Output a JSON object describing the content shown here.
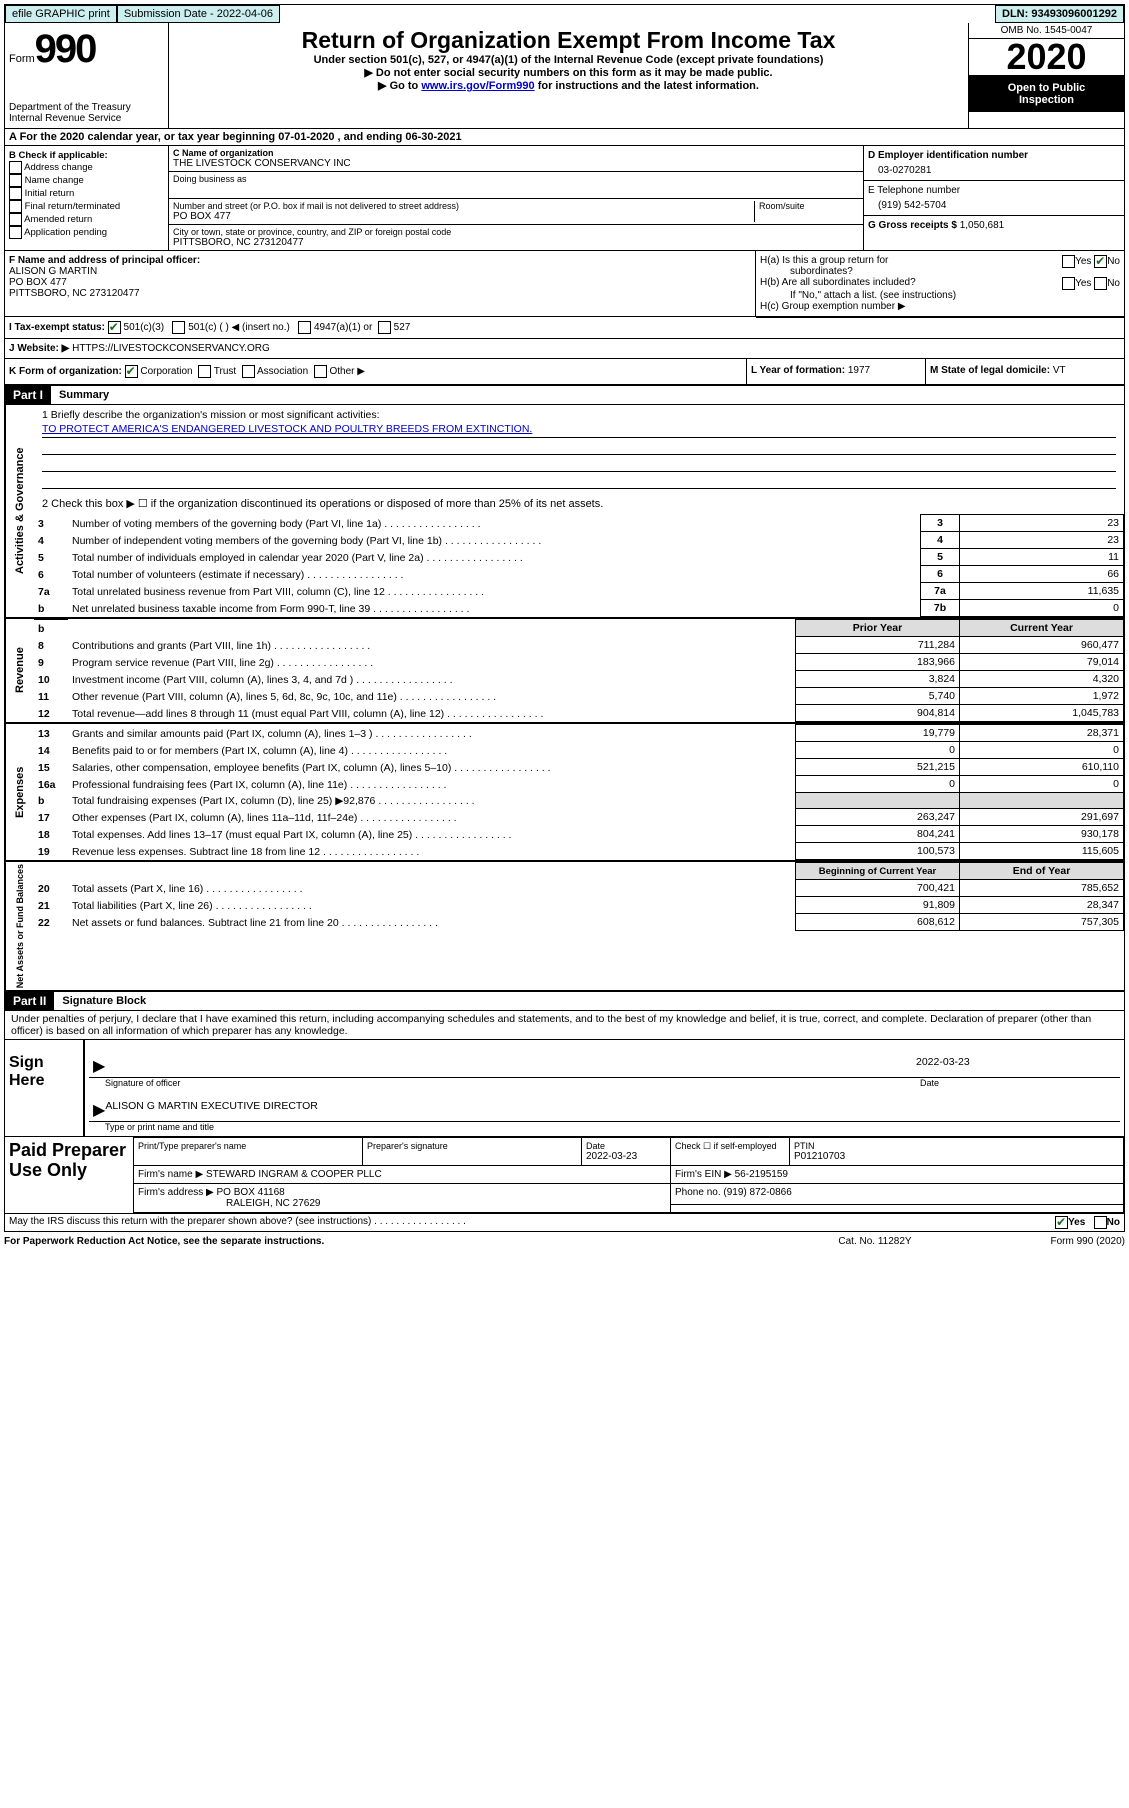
{
  "topbar": {
    "efile": "efile GRAPHIC print",
    "submission": "Submission Date - 2022-04-06",
    "dln": "DLN: 93493096001292"
  },
  "header": {
    "form_word": "Form",
    "form_number": "990",
    "dept1": "Department of the Treasury",
    "dept2": "Internal Revenue Service",
    "title": "Return of Organization Exempt From Income Tax",
    "sub": "Under section 501(c), 527, or 4947(a)(1) of the Internal Revenue Code (except private foundations)",
    "note1": "▶ Do not enter social security numbers on this form as it may be made public.",
    "note2_pre": "▶ Go to ",
    "note2_link": "www.irs.gov/Form990",
    "note2_post": " for instructions and the latest information.",
    "omb": "OMB No. 1545-0047",
    "year": "2020",
    "inspect1": "Open to Public",
    "inspect2": "Inspection"
  },
  "section_a": "A   For the 2020 calendar year, or tax year beginning 07-01-2020    , and ending 06-30-2021",
  "block_b": {
    "title": "B Check if applicable:",
    "items": [
      "Address change",
      "Name change",
      "Initial return",
      "Final return/terminated",
      "Amended return",
      "Application pending"
    ]
  },
  "block_c": {
    "name_label": "C Name of organization",
    "name": "THE LIVESTOCK CONSERVANCY INC",
    "dba_label": "Doing business as",
    "addr_label": "Number and street (or P.O. box if mail is not delivered to street address)",
    "room_label": "Room/suite",
    "addr": "PO BOX 477",
    "city_label": "City or town, state or province, country, and ZIP or foreign postal code",
    "city": "PITTSBORO, NC  273120477"
  },
  "block_d": {
    "d_label": "D Employer identification number",
    "d_value": "03-0270281",
    "e_label": "E Telephone number",
    "e_value": "(919) 542-5704",
    "g_label": "G Gross receipts $",
    "g_value": "1,050,681"
  },
  "block_f": {
    "label": "F  Name and address of principal officer:",
    "line1": "ALISON G MARTIN",
    "line2": "PO BOX 477",
    "line3": "PITTSBORO, NC  273120477"
  },
  "block_h": {
    "ha_label": "H(a)  Is this a group return for",
    "ha_label2": "subordinates?",
    "hb_label": "H(b)  Are all subordinates included?",
    "h_note": "If \"No,\" attach a list. (see instructions)",
    "hc_label": "H(c)  Group exemption number ▶"
  },
  "row_i": {
    "label": "I   Tax-exempt status:",
    "opt1": "501(c)(3)",
    "opt2": "501(c) (  ) ◀ (insert no.)",
    "opt3": "4947(a)(1) or",
    "opt4": "527"
  },
  "row_j": {
    "label": "J   Website: ▶",
    "value": " HTTPS://LIVESTOCKCONSERVANCY.ORG"
  },
  "row_k": {
    "k_label": "K Form of organization:",
    "k_opts": [
      "Corporation",
      "Trust",
      "Association",
      "Other ▶"
    ],
    "l_label": "L Year of formation:",
    "l_value": "1977",
    "m_label": "M State of legal domicile:",
    "m_value": "VT"
  },
  "part1": {
    "header": "Part I",
    "title": "Summary",
    "q1_label": "1   Briefly describe the organization's mission or most significant activities:",
    "q1_text": "TO PROTECT AMERICA'S ENDANGERED LIVESTOCK AND POULTRY BREEDS FROM EXTINCTION.",
    "q2_label": "2   Check this box ▶ ☐  if the organization discontinued its operations or disposed of more than 25% of its net assets.",
    "vert_activities": "Activities & Governance",
    "vert_revenue": "Revenue",
    "vert_expenses": "Expenses",
    "vert_netassets": "Net Assets or Fund Balances",
    "rows_37": [
      {
        "n": "3",
        "desc": "Number of voting members of the governing body (Part VI, line 1a)",
        "box": "3",
        "val": "23"
      },
      {
        "n": "4",
        "desc": "Number of independent voting members of the governing body (Part VI, line 1b)",
        "box": "4",
        "val": "23"
      },
      {
        "n": "5",
        "desc": "Total number of individuals employed in calendar year 2020 (Part V, line 2a)",
        "box": "5",
        "val": "11"
      },
      {
        "n": "6",
        "desc": "Total number of volunteers (estimate if necessary)",
        "box": "6",
        "val": "66"
      },
      {
        "n": "7a",
        "desc": "Total unrelated business revenue from Part VIII, column (C), line 12",
        "box": "7a",
        "val": "11,635"
      },
      {
        "n": "b",
        "desc": "Net unrelated business taxable income from Form 990-T, line 39",
        "box": "7b",
        "val": "0"
      }
    ],
    "prior_header": "Prior Year",
    "current_header": "Current Year",
    "rows_812": [
      {
        "n": "8",
        "desc": "Contributions and grants (Part VIII, line 1h)",
        "prior": "711,284",
        "curr": "960,477"
      },
      {
        "n": "9",
        "desc": "Program service revenue (Part VIII, line 2g)",
        "prior": "183,966",
        "curr": "79,014"
      },
      {
        "n": "10",
        "desc": "Investment income (Part VIII, column (A), lines 3, 4, and 7d )",
        "prior": "3,824",
        "curr": "4,320"
      },
      {
        "n": "11",
        "desc": "Other revenue (Part VIII, column (A), lines 5, 6d, 8c, 9c, 10c, and 11e)",
        "prior": "5,740",
        "curr": "1,972"
      },
      {
        "n": "12",
        "desc": "Total revenue—add lines 8 through 11 (must equal Part VIII, column (A), line 12)",
        "prior": "904,814",
        "curr": "1,045,783"
      }
    ],
    "rows_1319": [
      {
        "n": "13",
        "desc": "Grants and similar amounts paid (Part IX, column (A), lines 1–3 )",
        "prior": "19,779",
        "curr": "28,371"
      },
      {
        "n": "14",
        "desc": "Benefits paid to or for members (Part IX, column (A), line 4)",
        "prior": "0",
        "curr": "0"
      },
      {
        "n": "15",
        "desc": "Salaries, other compensation, employee benefits (Part IX, column (A), lines 5–10)",
        "prior": "521,215",
        "curr": "610,110"
      },
      {
        "n": "16a",
        "desc": "Professional fundraising fees (Part IX, column (A), line 11e)",
        "prior": "0",
        "curr": "0"
      },
      {
        "n": "b",
        "desc": "Total fundraising expenses (Part IX, column (D), line 25) ▶92,876",
        "prior": "SHADED",
        "curr": "SHADED"
      },
      {
        "n": "17",
        "desc": "Other expenses (Part IX, column (A), lines 11a–11d, 11f–24e)",
        "prior": "263,247",
        "curr": "291,697"
      },
      {
        "n": "18",
        "desc": "Total expenses. Add lines 13–17 (must equal Part IX, column (A), line 25)",
        "prior": "804,241",
        "curr": "930,178"
      },
      {
        "n": "19",
        "desc": "Revenue less expenses. Subtract line 18 from line 12",
        "prior": "100,573",
        "curr": "115,605"
      }
    ],
    "begin_header": "Beginning of Current Year",
    "end_header": "End of Year",
    "rows_2022": [
      {
        "n": "20",
        "desc": "Total assets (Part X, line 16)",
        "prior": "700,421",
        "curr": "785,652"
      },
      {
        "n": "21",
        "desc": "Total liabilities (Part X, line 26)",
        "prior": "91,809",
        "curr": "28,347"
      },
      {
        "n": "22",
        "desc": "Net assets or fund balances. Subtract line 21 from line 20",
        "prior": "608,612",
        "curr": "757,305"
      }
    ]
  },
  "part2": {
    "header": "Part II",
    "title": "Signature Block",
    "intro": "Under penalties of perjury, I declare that I have examined this return, including accompanying schedules and statements, and to the best of my knowledge and belief, it is true, correct, and complete. Declaration of preparer (other than officer) is based on all information of which preparer has any knowledge.",
    "sign_here": "Sign Here",
    "sig_officer_label": "Signature of officer",
    "sig_date": "2022-03-23",
    "sig_date_label": "Date",
    "sig_name": "ALISON G MARTIN  EXECUTIVE DIRECTOR",
    "sig_name_label": "Type or print name and title",
    "paid_label": "Paid Preparer Use Only",
    "prep_name_label": "Print/Type preparer's name",
    "prep_sig_label": "Preparer's signature",
    "prep_date_label": "Date",
    "prep_date": "2022-03-23",
    "prep_check_label": "Check ☐ if self-employed",
    "ptin_label": "PTIN",
    "ptin": "P01210703",
    "firm_name_label": "Firm's name      ▶",
    "firm_name": "STEWARD INGRAM & COOPER PLLC",
    "firm_ein_label": "Firm's EIN ▶",
    "firm_ein": "56-2195159",
    "firm_addr_label": "Firm's address ▶",
    "firm_addr1": "PO BOX 41168",
    "firm_addr2": "RALEIGH, NC  27629",
    "firm_phone_label": "Phone no.",
    "firm_phone": "(919) 872-0866",
    "discuss_label": "May the IRS discuss this return with the preparer shown above? (see instructions)",
    "paperwork": "For Paperwork Reduction Act Notice, see the separate instructions.",
    "catno": "Cat. No. 11282Y",
    "form_foot": "Form 990 (2020)",
    "yes": "Yes",
    "no": "No"
  }
}
